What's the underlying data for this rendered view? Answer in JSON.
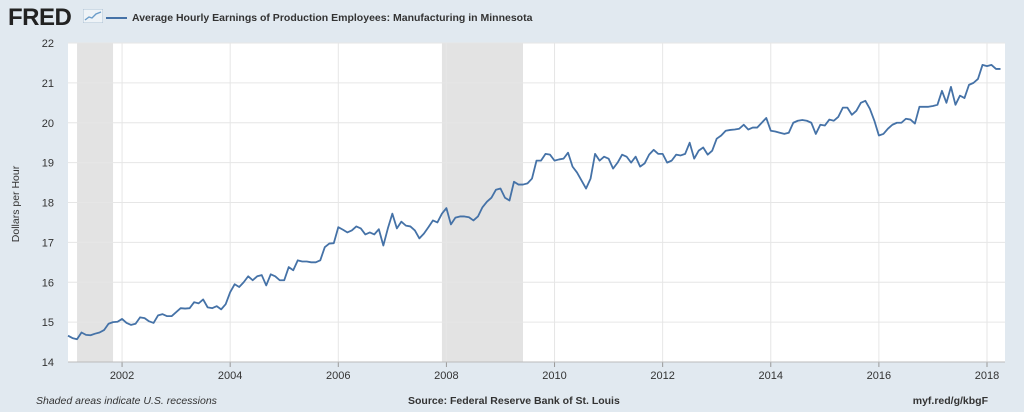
{
  "header": {
    "logo_text": "FRED",
    "logo_icon": "fred-chart-icon"
  },
  "chart_data": {
    "type": "line",
    "title": "Average Hourly Earnings of Production Employees: Manufacturing in Minnesota",
    "ylabel": "Dollars per Hour",
    "xlabel": "",
    "ylim": [
      14,
      22
    ],
    "xlim": [
      2001.0,
      2018.333
    ],
    "yticks": [
      "14",
      "15",
      "16",
      "17",
      "18",
      "19",
      "20",
      "21",
      "22"
    ],
    "xticks": [
      "2002",
      "2004",
      "2006",
      "2008",
      "2010",
      "2012",
      "2014",
      "2016",
      "2018"
    ],
    "grid": true,
    "legend_position": "top-left",
    "line_color": "#4572a7",
    "recession_color": "#e3e3e3",
    "recessions": [
      [
        2001.167,
        2001.833
      ],
      [
        2007.917,
        2009.417
      ]
    ],
    "series": [
      {
        "name": "Average Hourly Earnings of Production Employees: Manufacturing in Minnesota",
        "start": "2001-01",
        "frequency": "monthly",
        "values": [
          14.66,
          14.6,
          14.57,
          14.74,
          14.68,
          14.67,
          14.71,
          14.74,
          14.8,
          14.96,
          15.0,
          15.01,
          15.08,
          14.98,
          14.93,
          14.96,
          15.12,
          15.1,
          15.02,
          14.98,
          15.17,
          15.2,
          15.15,
          15.15,
          15.25,
          15.35,
          15.34,
          15.35,
          15.5,
          15.47,
          15.57,
          15.37,
          15.35,
          15.4,
          15.32,
          15.45,
          15.75,
          15.95,
          15.88,
          16.0,
          16.15,
          16.05,
          16.15,
          16.18,
          15.92,
          16.2,
          16.15,
          16.05,
          16.05,
          16.38,
          16.3,
          16.55,
          16.52,
          16.52,
          16.5,
          16.5,
          16.55,
          16.88,
          16.97,
          16.98,
          17.38,
          17.32,
          17.25,
          17.3,
          17.4,
          17.35,
          17.2,
          17.25,
          17.2,
          17.33,
          16.92,
          17.35,
          17.72,
          17.35,
          17.52,
          17.42,
          17.4,
          17.3,
          17.1,
          17.22,
          17.38,
          17.55,
          17.5,
          17.72,
          17.86,
          17.45,
          17.62,
          17.65,
          17.65,
          17.63,
          17.55,
          17.65,
          17.88,
          18.02,
          18.12,
          18.32,
          18.35,
          18.12,
          18.05,
          18.52,
          18.45,
          18.45,
          18.48,
          18.6,
          19.05,
          19.05,
          19.22,
          19.2,
          19.05,
          19.08,
          19.1,
          19.25,
          18.9,
          18.75,
          18.55,
          18.35,
          18.6,
          19.22,
          19.05,
          19.15,
          19.1,
          18.85,
          19.0,
          19.2,
          19.15,
          19.0,
          19.15,
          18.9,
          18.98,
          19.2,
          19.32,
          19.22,
          19.22,
          19.0,
          19.05,
          19.2,
          19.18,
          19.22,
          19.5,
          19.1,
          19.3,
          19.38,
          19.2,
          19.3,
          19.6,
          19.68,
          19.8,
          19.82,
          19.83,
          19.85,
          19.95,
          19.83,
          19.88,
          19.88,
          20.0,
          20.12,
          19.8,
          19.78,
          19.75,
          19.72,
          19.75,
          20.0,
          20.05,
          20.07,
          20.05,
          20.0,
          19.72,
          19.95,
          19.93,
          20.08,
          20.05,
          20.15,
          20.38,
          20.38,
          20.2,
          20.3,
          20.5,
          20.55,
          20.35,
          20.05,
          19.68,
          19.72,
          19.85,
          19.95,
          20.0,
          20.0,
          20.1,
          20.08,
          19.98,
          20.4,
          20.4,
          20.4,
          20.42,
          20.45,
          20.8,
          20.5,
          20.9,
          20.45,
          20.68,
          20.62,
          20.95,
          21.0,
          21.1,
          21.45,
          21.42,
          21.45,
          21.35,
          21.35
        ]
      }
    ]
  },
  "footer": {
    "note": "Shaded areas indicate U.S. recessions",
    "source": "Source: Federal Reserve Bank of St. Louis",
    "url": "myf.red/g/kbgF"
  }
}
